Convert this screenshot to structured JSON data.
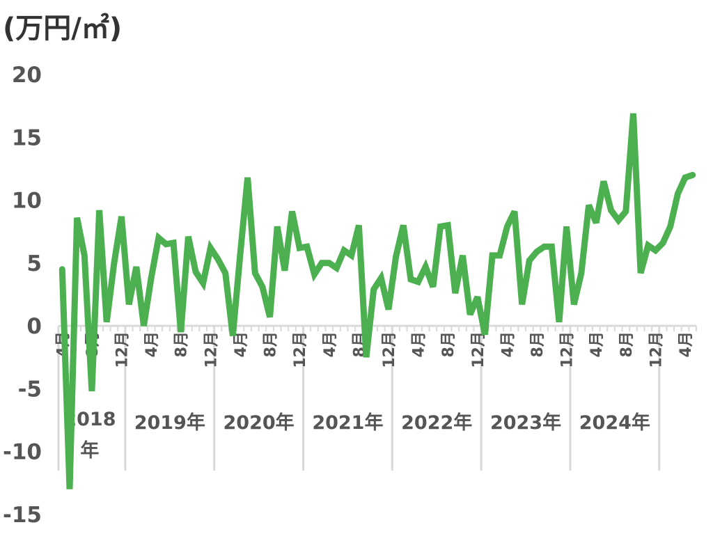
{
  "unit_label": "(万円/㎡)",
  "chart_data": {
    "type": "line",
    "title": "",
    "xlabel": "",
    "ylabel": "(万円/㎡)",
    "ylim": [
      -15,
      20
    ],
    "yticks": [
      "20",
      "15",
      "10",
      "5",
      "0",
      "-5",
      "-10",
      "-15"
    ],
    "grid": false,
    "line_color": "#4caf50",
    "axis_color": "#d9d9d9",
    "month_tick_labels": [
      "4月",
      "8月",
      "12月",
      "4月",
      "8月",
      "12月",
      "4月",
      "8月",
      "12月",
      "4月",
      "8月",
      "12月",
      "4月",
      "8月",
      "12月",
      "4月",
      "8月",
      "12月",
      "4月",
      "8月",
      "12月",
      "4月"
    ],
    "year_labels": [
      "2018年",
      "2019年",
      "2020年",
      "2021年",
      "2022年",
      "2023年",
      "2024年"
    ],
    "start_month": "2018-04",
    "series": [
      {
        "values": [
          4.5,
          -13.0,
          8.6,
          5.6,
          -5.2,
          9.2,
          0.3,
          5.0,
          8.7,
          1.7,
          4.7,
          0.0,
          3.8,
          7.0,
          6.5,
          6.6,
          -0.5,
          7.1,
          4.3,
          3.4,
          6.2,
          5.3,
          4.2,
          -0.8,
          5.7,
          11.8,
          4.2,
          3.1,
          0.7,
          7.9,
          4.4,
          9.1,
          6.2,
          6.3,
          4.1,
          5.0,
          5.0,
          4.6,
          6.0,
          5.6,
          8.0,
          -2.5,
          2.9,
          3.8,
          1.3,
          5.5,
          8.0,
          3.7,
          3.5,
          4.7,
          3.1,
          7.9,
          8.0,
          2.6,
          5.6,
          0.9,
          2.3,
          -0.7,
          5.6,
          5.6,
          7.9,
          9.1,
          1.7,
          5.2,
          5.9,
          6.3,
          6.3,
          0.3,
          7.9,
          1.7,
          4.2,
          9.6,
          8.2,
          11.5,
          9.2,
          8.4,
          9.1,
          16.9,
          4.2,
          6.4,
          6.0,
          6.6,
          7.9,
          10.5,
          11.8,
          12.0
        ]
      }
    ]
  }
}
